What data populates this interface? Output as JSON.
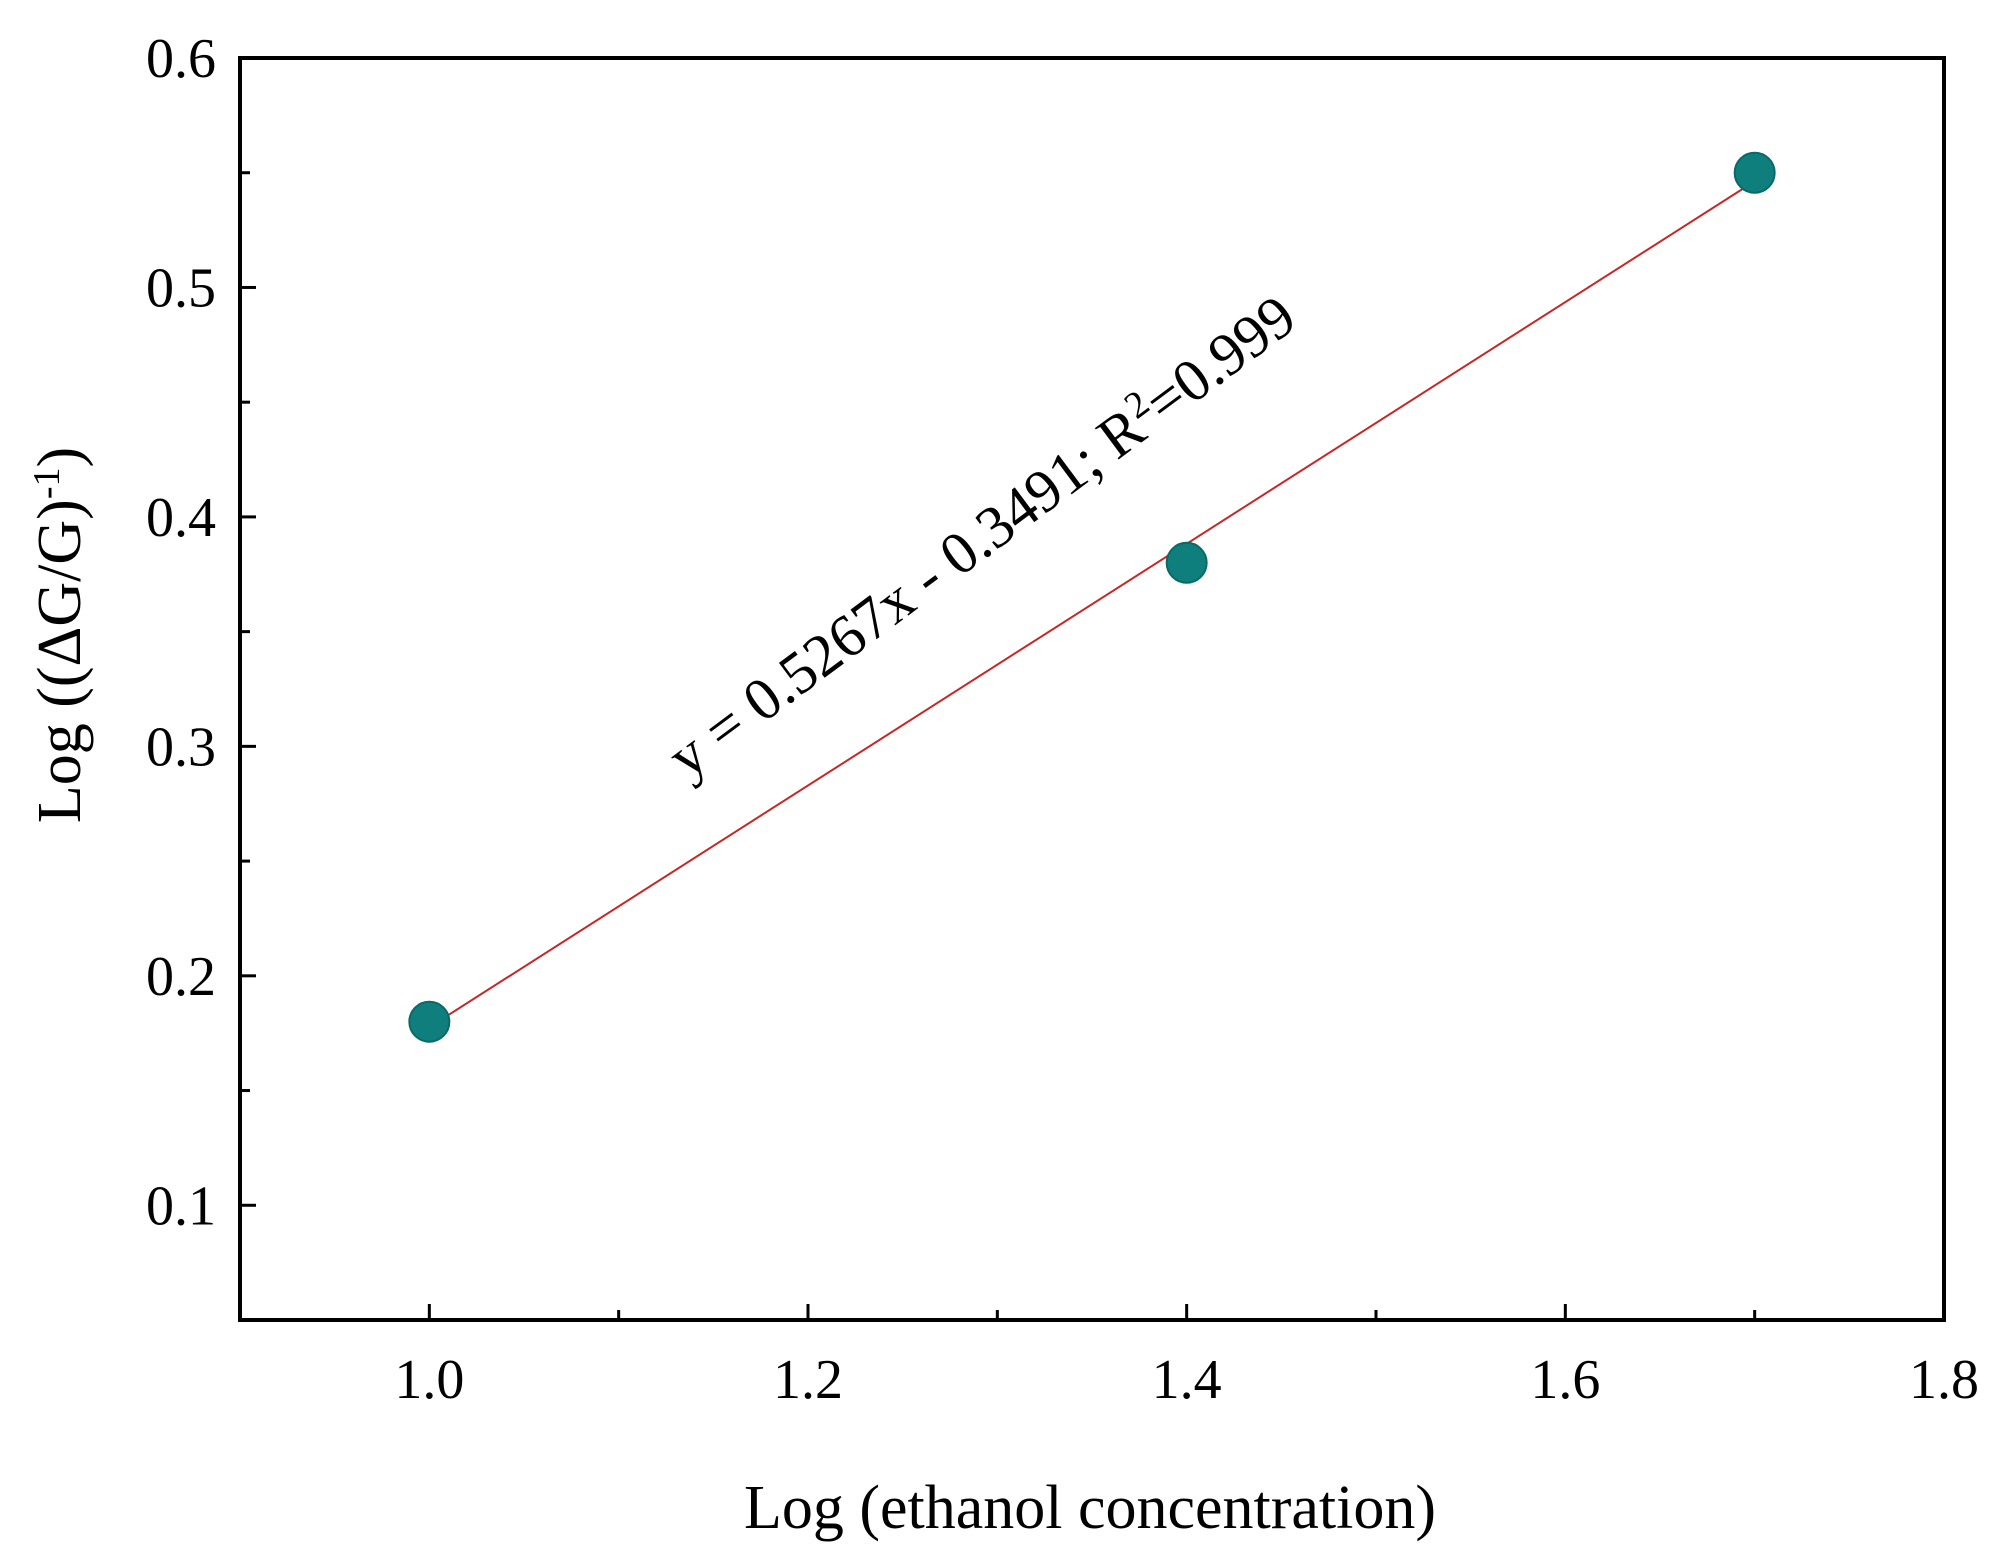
{
  "chart_data": {
    "type": "scatter",
    "title": "",
    "xlabel": "Log (ethanol concentration)",
    "ylabel": {
      "prefix": "Log ((ΔG/G)",
      "superscript": "-1",
      "suffix": ")"
    },
    "xlim": [
      0.9,
      1.8
    ],
    "ylim": [
      0.05,
      0.6
    ],
    "xticks": [
      1.0,
      1.2,
      1.4,
      1.6,
      1.8
    ],
    "xtick_labels": [
      "1.0",
      "1.2",
      "1.4",
      "1.6",
      "1.8"
    ],
    "yticks": [
      0.1,
      0.2,
      0.3,
      0.4,
      0.5,
      0.6
    ],
    "ytick_labels": [
      "0.1",
      "0.2",
      "0.3",
      "0.4",
      "0.5",
      "0.6"
    ],
    "x_minor_step": 0.1,
    "y_minor_step": 0.05,
    "series": [
      {
        "name": "data",
        "x": [
          1.0,
          1.4,
          1.7
        ],
        "y": [
          0.18,
          0.38,
          0.55
        ],
        "color": "#0e7f7c"
      }
    ],
    "fit": {
      "slope": 0.5267,
      "intercept": -0.3491,
      "x_range": [
        1.0,
        1.7
      ],
      "color": "#c62828",
      "equation_prefix": "y = 0.5267x - 0.3491; R",
      "equation_superscript": "2",
      "equation_suffix": "=0.999"
    }
  }
}
